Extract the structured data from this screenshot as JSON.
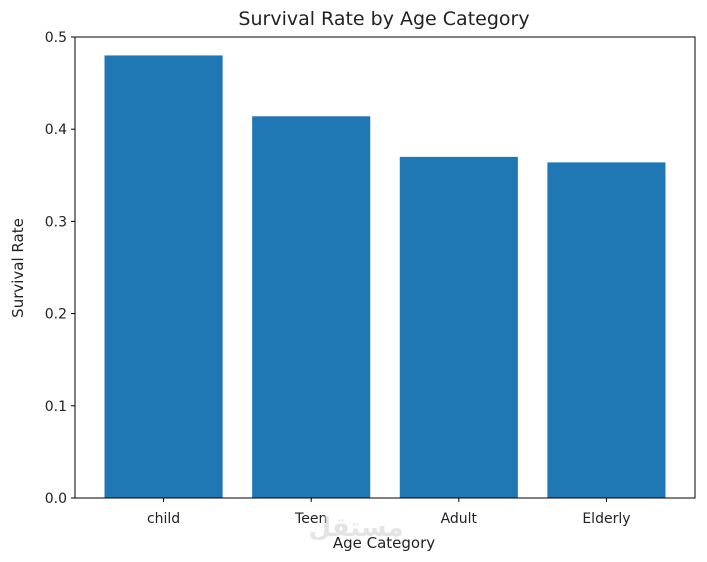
{
  "chart_data": {
    "type": "bar",
    "title": "Survival Rate by Age Category",
    "xlabel": "Age Category",
    "ylabel": "Survival Rate",
    "categories": [
      "child",
      "Teen",
      "Adult",
      "Elderly"
    ],
    "values": [
      0.48,
      0.414,
      0.37,
      0.364
    ],
    "ylim": [
      0,
      0.5
    ],
    "yticks": [
      "0.0",
      "0.1",
      "0.2",
      "0.3",
      "0.4",
      "0.5"
    ],
    "bar_color": "#1f77b4",
    "grid": false,
    "legend": false
  },
  "watermark": {
    "text": "مستقل"
  }
}
